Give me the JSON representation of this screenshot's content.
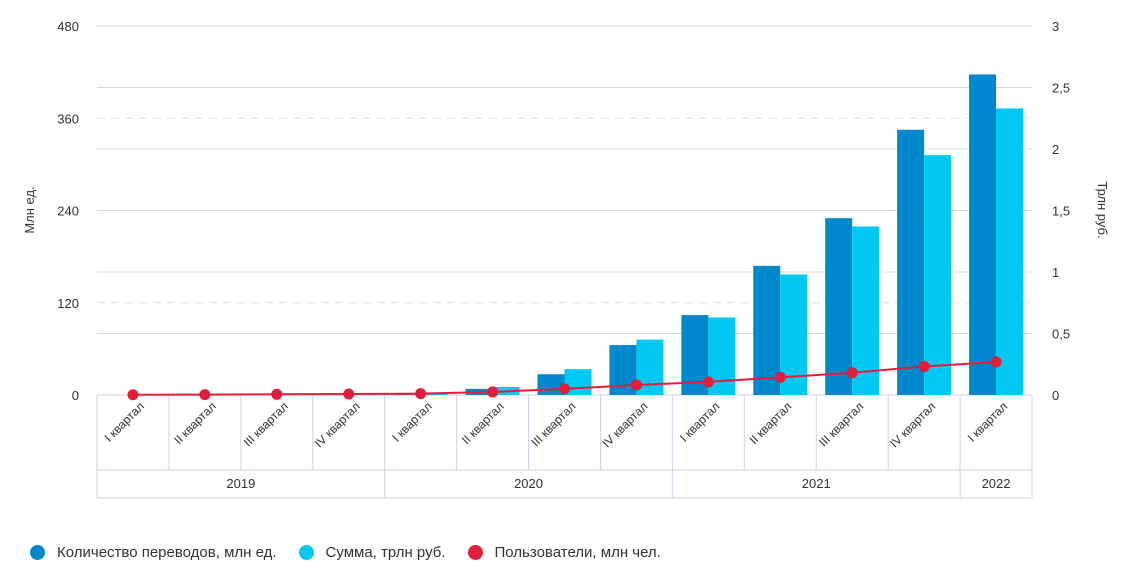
{
  "chart_data": {
    "type": "bar",
    "title": "",
    "categories": [
      "I квартал",
      "II квартал",
      "III квартал",
      "IV квартал",
      "I квартал",
      "II квартал",
      "III квартал",
      "IV квартал",
      "I квартал",
      "II квартал",
      "III квартал",
      "IV квартал",
      "I квартал"
    ],
    "year_groups": [
      {
        "label": "2019",
        "count": 4
      },
      {
        "label": "2020",
        "count": 4
      },
      {
        "label": "2021",
        "count": 4
      },
      {
        "label": "2022",
        "count": 1
      }
    ],
    "left_axis": {
      "label": "Млн ед.",
      "range": [
        0,
        480
      ],
      "ticks": [
        "0",
        "120",
        "240",
        "360",
        "480"
      ],
      "tick_values": [
        0,
        120,
        240,
        360,
        480
      ]
    },
    "right_axis": {
      "label": "Трлн руб.",
      "range": [
        0,
        3
      ],
      "ticks": [
        "0",
        "0,5",
        "1",
        "1,5",
        "2",
        "2,5",
        "3"
      ],
      "tick_values": [
        0,
        0.5,
        1,
        1.5,
        2,
        2.5,
        3
      ]
    },
    "series": [
      {
        "name": "Количество переводов, млн ед.",
        "kind": "bar",
        "axis": "left",
        "color": "#0088cc",
        "values": [
          0,
          0,
          0,
          0.5,
          2,
          8,
          27,
          65,
          104,
          168,
          230,
          345,
          417
        ]
      },
      {
        "name": "Сумма, трлн руб.",
        "kind": "bar",
        "axis": "right",
        "color": "#00c8f0",
        "values": [
          0,
          0,
          0,
          0.003,
          0.02,
          0.065,
          0.21,
          0.45,
          0.63,
          0.98,
          1.37,
          1.95,
          2.33
        ]
      },
      {
        "name": "Пользователи, млн чел.",
        "kind": "line",
        "axis": "left",
        "color": "#e31e3c",
        "values": [
          0.3,
          0.5,
          0.9,
          1.3,
          1.8,
          4,
          8,
          13,
          17,
          23,
          29,
          37,
          43
        ]
      }
    ],
    "grid": true,
    "legend_position": "bottom-left"
  }
}
